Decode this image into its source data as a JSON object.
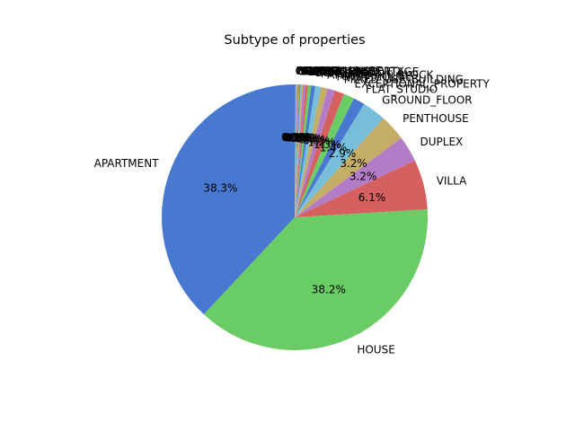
{
  "chart_data": {
    "type": "pie",
    "title": "Subtype of properties",
    "start_angle_deg": 90,
    "direction": "counterclockwise",
    "slices": [
      {
        "label": "APARTMENT",
        "value": 38.3,
        "pct_label": "38.3%",
        "color": "#4878d0"
      },
      {
        "label": "HOUSE",
        "value": 38.2,
        "pct_label": "38.2%",
        "color": "#6acc64"
      },
      {
        "label": "VILLA",
        "value": 6.1,
        "pct_label": "6.1%",
        "color": "#d65f5f"
      },
      {
        "label": "DUPLEX",
        "value": 3.2,
        "pct_label": "3.2%",
        "color": "#b47cc7"
      },
      {
        "label": "PENTHOUSE",
        "value": 3.2,
        "pct_label": "3.2%",
        "color": "#c4ad66"
      },
      {
        "label": "GROUND_FLOOR",
        "value": 2.9,
        "pct_label": "2.9%",
        "color": "#77bedb"
      },
      {
        "label": "FLAT_STUDIO",
        "value": 1.4,
        "pct_label": "1.4%",
        "color": "#4878d0"
      },
      {
        "label": "EXCEPTIONAL_PROPERTY",
        "value": 1.3,
        "pct_label": "1.3%",
        "color": "#6acc64"
      },
      {
        "label": "MIXED_USE_BUILDING",
        "value": 1.2,
        "pct_label": "1.2%",
        "color": "#d65f5f"
      },
      {
        "label": "TOWN_HOUSE",
        "value": 0.9,
        "pct_label": "0.9%",
        "color": "#b47cc7"
      },
      {
        "label": "APARTMENT_BLOCK",
        "value": 0.8,
        "pct_label": "0.8%",
        "color": "#c4ad66"
      },
      {
        "label": "MANSION",
        "value": 0.7,
        "pct_label": "0.7%",
        "color": "#77bedb"
      },
      {
        "label": "BUNGALOW",
        "value": 0.5,
        "pct_label": "0.5%",
        "color": "#4878d0"
      },
      {
        "label": "COUNTRY_COTTAGE",
        "value": 0.4,
        "pct_label": "0.4%",
        "color": "#6acc64"
      },
      {
        "label": "LOFT",
        "value": 0.3,
        "pct_label": "0.3%",
        "color": "#d65f5f"
      },
      {
        "label": "OTHER_PROPERTY",
        "value": 0.3,
        "pct_label": "0.3%",
        "color": "#b47cc7"
      },
      {
        "label": "KOT",
        "value": 0.2,
        "pct_label": "0.2%",
        "color": "#c4ad66"
      },
      {
        "label": "FARMHOUSE",
        "value": 0.1,
        "pct_label": "0.1%",
        "color": "#77bedb"
      },
      {
        "label": "CHALET",
        "value": 0.1,
        "pct_label": "0.1%",
        "color": "#4878d0"
      },
      {
        "label": "TRIPLEX",
        "value": 0.1,
        "pct_label": "0.1%",
        "color": "#6acc64"
      },
      {
        "label": "SERVICE_FLAT",
        "value": 0.1,
        "pct_label": "0.1%",
        "color": "#d65f5f"
      },
      {
        "label": "MANOR_HOUSE",
        "value": 0.1,
        "pct_label": "0.1%",
        "color": "#b47cc7"
      },
      {
        "label": "CASTLE",
        "value": 0.1,
        "pct_label": "0.1%",
        "color": "#c4ad66"
      },
      {
        "label": "PAVILION",
        "value": 0.1,
        "pct_label": "0.1%",
        "color": "#77bedb"
      },
      {
        "label": "OTHER",
        "value": 0.1,
        "pct_label": "0.1%",
        "color": "#4878d0"
      }
    ]
  }
}
